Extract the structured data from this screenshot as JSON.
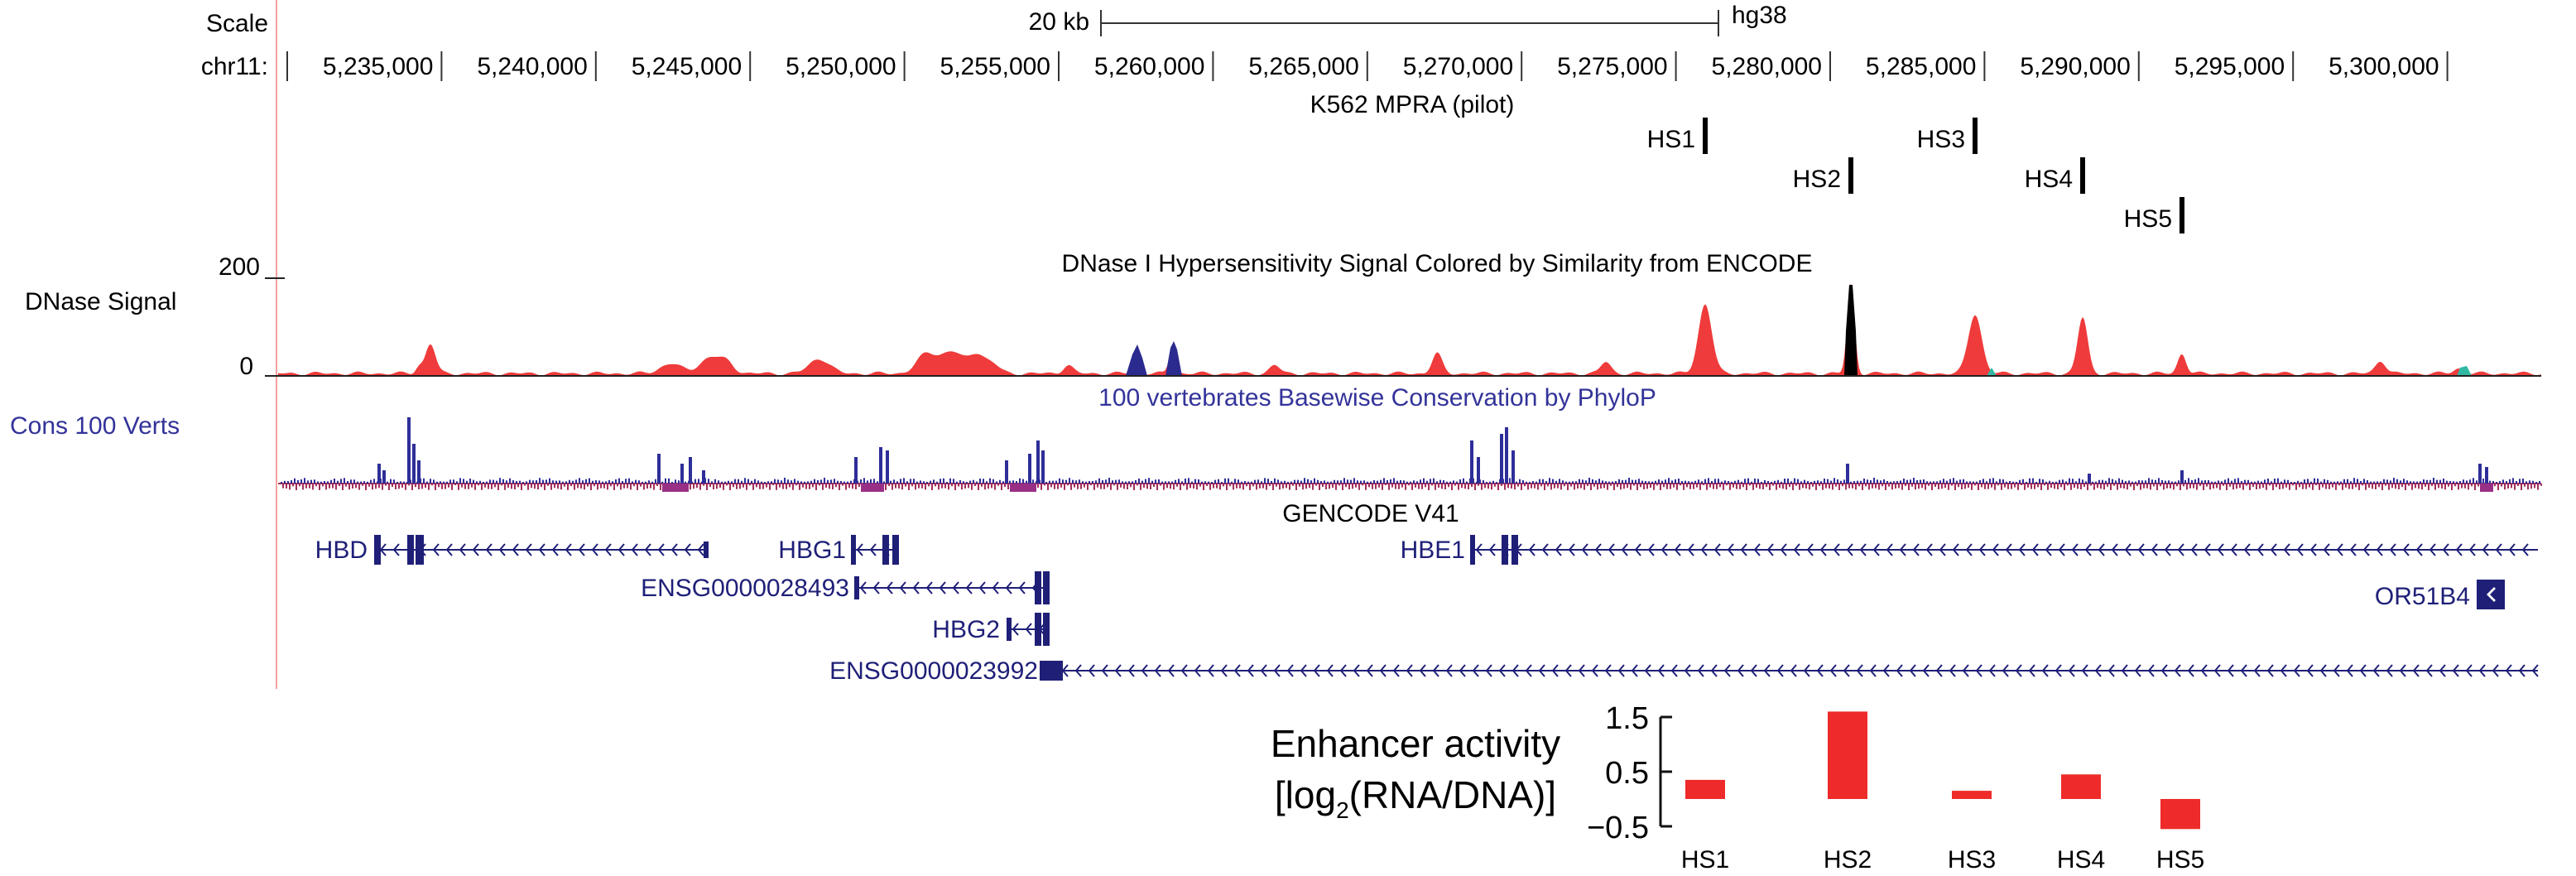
{
  "browser": {
    "scale_label": "Scale",
    "scalebar_label": "20 kb",
    "assembly": "hg38",
    "chrom_label": "chr11:",
    "coord_ticks": [
      "5,235,000",
      "5,240,000",
      "5,245,000",
      "5,250,000",
      "5,255,000",
      "5,260,000",
      "5,265,000",
      "5,270,000",
      "5,275,000",
      "5,280,000",
      "5,285,000",
      "5,290,000",
      "5,295,000",
      "5,300,000"
    ]
  },
  "tracks": {
    "mpra": {
      "title": "K562 MPRA (pilot)",
      "elements": [
        "HS1",
        "HS2",
        "HS3",
        "HS4",
        "HS5"
      ]
    },
    "dnase": {
      "title": "DNase I Hypersensitivity Signal Colored by Similarity from ENCODE",
      "label": "DNase Signal",
      "axis_max": "200",
      "axis_min": "0",
      "colors": {
        "main": "#ef3b3b",
        "alt": "#2b2b8f",
        "black": "#000000",
        "teal": "#31b8a3"
      }
    },
    "conservation": {
      "label": "Cons 100 Verts",
      "title": "100 vertebrates Basewise Conservation by PhyloP",
      "colors": {
        "positive": "#2e2e99",
        "negative": "#a32f5a"
      }
    },
    "genes": {
      "title": "GENCODE V41",
      "color": "#1f1f78",
      "names": [
        "HBD",
        "HBG1",
        "ENSG0000028493",
        "HBG2",
        "ENSG0000023992",
        "HBE1",
        "OR51B4"
      ]
    }
  },
  "chart_data": {
    "type": "bar",
    "title": "",
    "ylabel_line1": "Enhancer activity",
    "ylabel_line2_prefix": "[log",
    "ylabel_line2_sub": "2",
    "ylabel_line2_suffix": "(RNA/DNA)]",
    "categories": [
      "HS1",
      "HS2",
      "HS3",
      "HS4",
      "HS5"
    ],
    "values": [
      0.35,
      1.6,
      0.15,
      0.45,
      -0.55
    ],
    "ylim": [
      -0.5,
      1.5
    ],
    "yticks": [
      "1.5",
      "0.5",
      "−0.5"
    ],
    "ytick_values": [
      1.5,
      0.5,
      -0.5
    ],
    "bar_color": "#ee2a2a"
  }
}
